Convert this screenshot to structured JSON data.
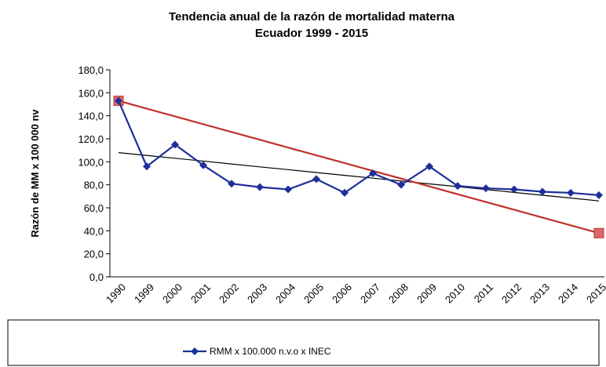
{
  "chart_data": {
    "type": "line",
    "title": "Tendencia anual de la razón de mortalidad materna",
    "subtitle": "Ecuador 1999 - 2015",
    "ylabel": "Razón de MM x 100 000 nv",
    "categories": [
      "1990",
      "1999",
      "2000",
      "2001",
      "2002",
      "2003",
      "2004",
      "2005",
      "2006",
      "2007",
      "2008",
      "2009",
      "2010",
      "2011",
      "2012",
      "2013",
      "2014",
      "2015"
    ],
    "series": [
      {
        "name": "RMM x 100.000 n.v.o x INEC",
        "color": "#1f2f9a",
        "marker": "diamond",
        "values": [
          153,
          96,
          115,
          97,
          81,
          78,
          76,
          85,
          73,
          90,
          80,
          96,
          79,
          77,
          76,
          74,
          73,
          71
        ]
      },
      {
        "color": "#c0302a",
        "marker": "square-ends",
        "values": [
          153,
          146.2,
          139.5,
          132.7,
          125.9,
          119.2,
          112.4,
          105.6,
          98.9,
          92.1,
          85.4,
          78.6,
          71.8,
          65.1,
          58.3,
          51.5,
          44.8,
          38
        ]
      },
      {
        "color": "#000000",
        "marker": "none",
        "values": [
          108,
          105.5,
          103.1,
          100.6,
          98.1,
          95.6,
          93.2,
          90.7,
          88.2,
          85.8,
          83.3,
          80.8,
          78.4,
          75.9,
          73.4,
          70.9,
          68.5,
          66
        ]
      }
    ],
    "ylim": [
      0,
      180
    ],
    "yticks": [
      {
        "value": 0,
        "label": "0,0"
      },
      {
        "value": 20,
        "label": "20,0"
      },
      {
        "value": 40,
        "label": "40,0"
      },
      {
        "value": 60,
        "label": "60,0"
      },
      {
        "value": 80,
        "label": "80,0"
      },
      {
        "value": 100,
        "label": "100,0"
      },
      {
        "value": 120,
        "label": "120,0"
      },
      {
        "value": 140,
        "label": "140,0"
      },
      {
        "value": 160,
        "label": "160,0"
      },
      {
        "value": 180,
        "label": "180,0"
      }
    ],
    "grid": false,
    "legend": "bottom"
  }
}
